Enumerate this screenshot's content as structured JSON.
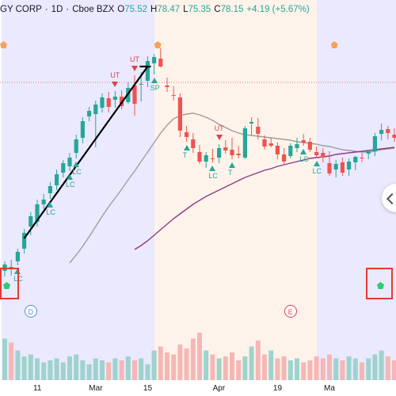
{
  "header": {
    "symbol_fragment": "GY CORP",
    "interval": "1D",
    "exchange": "Cboe BZX",
    "open_label": "O",
    "open_value": "75.52",
    "high_label": "H",
    "high_value": "78.47",
    "low_label": "L",
    "low_value": "75.35",
    "close_label": "C",
    "close_value": "78.15",
    "change": "+4.19 (+5.67%)"
  },
  "colors": {
    "up": "#26a69a",
    "down": "#ef5350",
    "ma_fast": "#9e9e9e",
    "ma_slow": "#8e3a86",
    "signal_down": "#e0424a",
    "signal_up": "#26a69a",
    "zone_a": "#ebe9fe",
    "zone_b": "#fdf3ea",
    "marker_green": "#2ecc71",
    "marker_orange": "#f5a25d",
    "highlight_box": "#e53935"
  },
  "chart_data": {
    "type": "candlestick",
    "candles": [
      [
        60.8,
        62.0,
        60.1,
        61.6
      ],
      [
        61.0,
        62.2,
        60.2,
        61.3
      ],
      [
        62.0,
        63.6,
        61.5,
        63.2
      ],
      [
        63.6,
        66.1,
        63.0,
        65.6
      ],
      [
        66.4,
        68.2,
        65.3,
        67.7
      ],
      [
        67.0,
        69.8,
        66.4,
        69.2
      ],
      [
        69.2,
        70.5,
        68.6,
        69.8
      ],
      [
        70.6,
        72.0,
        69.9,
        71.5
      ],
      [
        71.6,
        73.6,
        71.0,
        73.0
      ],
      [
        73.2,
        74.8,
        72.6,
        74.4
      ],
      [
        74.0,
        75.7,
        73.4,
        75.1
      ],
      [
        75.7,
        78.0,
        75.0,
        77.4
      ],
      [
        77.6,
        80.2,
        76.9,
        79.7
      ],
      [
        80.3,
        81.5,
        79.7,
        81.0
      ],
      [
        80.6,
        82.3,
        76.4,
        81.8
      ],
      [
        81.4,
        83.2,
        80.8,
        82.7
      ],
      [
        82.6,
        83.4,
        80.8,
        81.5
      ],
      [
        82.4,
        83.5,
        81.4,
        82.8
      ],
      [
        82.8,
        83.6,
        81.2,
        81.6
      ],
      [
        82.1,
        84.6,
        81.9,
        83.9
      ],
      [
        84.2,
        85.5,
        80.4,
        81.9
      ],
      [
        84.4,
        85.9,
        82.2,
        84.4
      ],
      [
        84.8,
        87.9,
        84.0,
        87.3
      ],
      [
        87.0,
        88.2,
        85.6,
        87.8
      ],
      [
        87.6,
        88.9,
        86.5,
        86.6
      ],
      [
        84.2,
        85.2,
        83.4,
        84.0
      ],
      [
        83.0,
        84.1,
        82.3,
        82.9
      ],
      [
        82.7,
        83.2,
        77.7,
        78.5
      ],
      [
        78.3,
        79.1,
        77.1,
        77.7
      ],
      [
        77.4,
        78.2,
        75.7,
        76.3
      ],
      [
        75.8,
        76.7,
        74.3,
        74.6
      ],
      [
        74.6,
        75.8,
        73.8,
        75.4
      ],
      [
        75.0,
        76.2,
        74.5,
        74.9
      ],
      [
        75.1,
        76.8,
        74.4,
        76.3
      ],
      [
        76.4,
        77.3,
        75.6,
        76.0
      ],
      [
        76.1,
        77.6,
        74.9,
        75.4
      ],
      [
        75.6,
        76.6,
        75.0,
        75.4
      ],
      [
        75.1,
        79.1,
        74.9,
        78.8
      ],
      [
        79.4,
        80.2,
        78.0,
        79.6
      ],
      [
        79.0,
        80.1,
        77.4,
        78.1
      ],
      [
        77.4,
        77.9,
        76.1,
        76.5
      ],
      [
        76.9,
        77.6,
        76.4,
        76.6
      ],
      [
        76.6,
        77.0,
        74.9,
        75.5
      ],
      [
        75.5,
        76.3,
        74.3,
        74.6
      ],
      [
        75.3,
        76.9,
        75.0,
        76.6
      ],
      [
        76.3,
        77.6,
        75.8,
        76.8
      ],
      [
        77.3,
        78.1,
        76.6,
        77.0
      ],
      [
        77.1,
        77.6,
        75.8,
        76.1
      ],
      [
        75.8,
        76.5,
        75.1,
        75.4
      ],
      [
        75.7,
        76.3,
        74.5,
        75.1
      ],
      [
        74.4,
        75.9,
        72.8,
        73.1
      ],
      [
        73.6,
        74.8,
        72.6,
        74.3
      ],
      [
        74.5,
        75.1,
        72.8,
        73.2
      ],
      [
        73.6,
        75.0,
        72.8,
        74.6
      ],
      [
        74.5,
        75.3,
        73.5,
        75.2
      ],
      [
        75.1,
        75.7,
        74.5,
        75.0
      ],
      [
        75.6,
        76.1,
        74.9,
        75.9
      ],
      [
        75.9,
        78.2,
        75.3,
        77.8
      ],
      [
        78.1,
        79.4,
        77.3,
        78.6
      ],
      [
        78.7,
        79.1,
        77.4,
        78.2
      ],
      [
        78.0,
        78.8,
        77.1,
        77.6
      ]
    ],
    "volumes": [
      42,
      38,
      30,
      24,
      26,
      22,
      18,
      20,
      22,
      18,
      24,
      26,
      20,
      16,
      22,
      20,
      18,
      22,
      20,
      24,
      20,
      22,
      16,
      30,
      34,
      28,
      26,
      36,
      32,
      42,
      48,
      30,
      26,
      22,
      24,
      28,
      20,
      24,
      34,
      40,
      26,
      30,
      22,
      24,
      20,
      22,
      18,
      20,
      24,
      22,
      26,
      22,
      20,
      24,
      22,
      18,
      22,
      26,
      30,
      24,
      20
    ],
    "volume_up": [
      1,
      0,
      1,
      1,
      1,
      1,
      1,
      1,
      1,
      1,
      1,
      1,
      1,
      1,
      1,
      1,
      0,
      1,
      0,
      1,
      0,
      1,
      1,
      1,
      0,
      0,
      0,
      0,
      0,
      0,
      0,
      1,
      0,
      1,
      0,
      0,
      0,
      1,
      1,
      0,
      0,
      1,
      0,
      0,
      1,
      1,
      0,
      0,
      0,
      0,
      0,
      1,
      0,
      1,
      1,
      0,
      1,
      1,
      1,
      0,
      0
    ],
    "ma_fast": [
      null,
      null,
      null,
      null,
      null,
      null,
      null,
      null,
      null,
      null,
      61.8,
      62.8,
      63.9,
      65.1,
      66.4,
      67.7,
      68.9,
      70.0,
      71.1,
      72.3,
      73.4,
      74.6,
      75.8,
      77.0,
      78.2,
      79.2,
      80.0,
      80.4,
      80.6,
      80.7,
      80.5,
      80.2,
      79.8,
      79.3,
      78.9,
      78.5,
      78.2,
      78.0,
      77.9,
      77.8,
      77.7,
      77.6,
      77.5,
      77.4,
      77.3,
      77.1,
      77.0,
      76.9,
      76.8,
      76.6,
      76.5,
      76.3,
      76.1,
      76.0,
      75.9,
      75.8,
      75.8,
      75.9,
      76.1,
      76.2,
      76.3
    ],
    "ma_slow": [
      null,
      null,
      null,
      null,
      null,
      null,
      null,
      null,
      null,
      null,
      null,
      null,
      null,
      null,
      null,
      null,
      null,
      null,
      null,
      null,
      63.5,
      64.0,
      64.6,
      65.3,
      66.0,
      66.7,
      67.4,
      68.0,
      68.6,
      69.2,
      69.7,
      70.2,
      70.6,
      71.0,
      71.4,
      71.8,
      72.2,
      72.6,
      72.9,
      73.2,
      73.5,
      73.7,
      74.0,
      74.2,
      74.4,
      74.6,
      74.8,
      75.0,
      75.1,
      75.2,
      75.3,
      75.5,
      75.6,
      75.7,
      75.8,
      75.9,
      76.0,
      76.1,
      76.2,
      76.3,
      76.4
    ],
    "ylim": [
      55,
      92
    ],
    "reference_price": 84.6,
    "trendline": [
      [
        3,
        64.9
      ],
      [
        22,
        86.6
      ]
    ],
    "xaxis_ticks": [
      {
        "label": "11",
        "index": 5
      },
      {
        "label": "Mar",
        "index": 14
      },
      {
        "label": "15",
        "index": 22
      },
      {
        "label": "Apr",
        "index": 33
      },
      {
        "label": "19",
        "index": 42
      },
      {
        "label": "Ma",
        "index": 50
      }
    ],
    "zones": [
      {
        "type": "a",
        "from": 0,
        "to": 23.5
      },
      {
        "type": "b",
        "from": 23.5,
        "to": 48.5
      },
      {
        "type": "a",
        "from": 48.5,
        "to": 61
      }
    ],
    "signals": [
      {
        "text": "UT",
        "kind": "down",
        "index": 17,
        "offset": "above"
      },
      {
        "text": "UT",
        "kind": "down",
        "index": 20,
        "offset": "above"
      },
      {
        "text": "UT",
        "kind": "down",
        "index": 33,
        "offset": "above"
      },
      {
        "text": "LC",
        "kind": "up",
        "index": 2,
        "offset": "below"
      },
      {
        "text": "LC",
        "kind": "up",
        "index": 7,
        "offset": "below"
      },
      {
        "text": "LC",
        "kind": "up",
        "index": 10,
        "offset": "below"
      },
      {
        "text": "LC",
        "kind": "up",
        "index": 11,
        "offset": "below"
      },
      {
        "text": "SP",
        "kind": "up",
        "index": 23,
        "offset": "below"
      },
      {
        "text": "T",
        "kind": "up",
        "index": 28,
        "offset": "below"
      },
      {
        "text": "LC",
        "kind": "up",
        "index": 32,
        "offset": "below"
      },
      {
        "text": "T",
        "kind": "up",
        "index": 35,
        "offset": "below"
      },
      {
        "text": "LC",
        "kind": "up",
        "index": 46,
        "offset": "below"
      },
      {
        "text": "LC",
        "kind": "up",
        "index": 48,
        "offset": "below"
      }
    ],
    "zone_markers": [
      {
        "letter": "D",
        "color": "#4a90d9",
        "index": 4
      },
      {
        "letter": "E",
        "color": "#e0424a",
        "index": 44
      }
    ]
  }
}
